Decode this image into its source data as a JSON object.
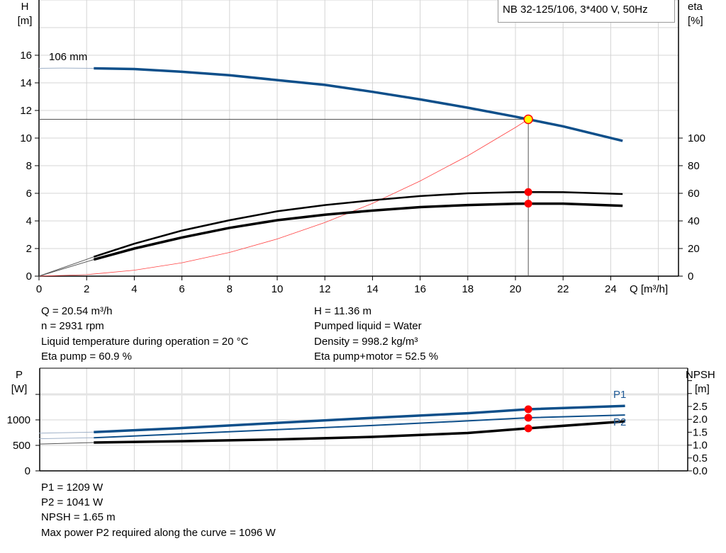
{
  "chart_data": [
    {
      "type": "line",
      "title": "NB 32-125/106, 3*400 V, 50Hz",
      "xlabel": "Q [m³/h]",
      "xlim": [
        0,
        26.8
      ],
      "xticks": [
        0,
        2,
        4,
        6,
        8,
        10,
        12,
        14,
        16,
        18,
        20,
        22,
        24
      ],
      "ylabel": "H\n[m]",
      "ylim": [
        0,
        20
      ],
      "yticks": [
        0,
        2,
        4,
        6,
        8,
        10,
        12,
        14,
        16
      ],
      "y2label": "eta\n[%]",
      "y2lim": [
        0,
        200
      ],
      "y2ticks": [
        0,
        20,
        40,
        60,
        80,
        100
      ],
      "grid": true,
      "curve_label": "106 mm",
      "series": [
        {
          "name": "H",
          "axis": "left",
          "color": "#0e4f8a",
          "x": [
            0,
            1,
            2.3,
            4,
            6,
            8,
            10,
            12,
            14,
            16,
            18,
            20,
            20.54,
            22,
            24.5
          ],
          "y": [
            15.05,
            15.07,
            15.05,
            15.0,
            14.8,
            14.55,
            14.2,
            13.85,
            13.35,
            12.8,
            12.2,
            11.55,
            11.36,
            10.85,
            9.8
          ]
        },
        {
          "name": "Eta pump",
          "axis": "right",
          "color": "#000000",
          "x": [
            0,
            2.3,
            4,
            6,
            8,
            10,
            12,
            14,
            16,
            18,
            20,
            20.54,
            22,
            24.5
          ],
          "y": [
            0,
            14,
            23.5,
            33,
            40.5,
            47,
            51.5,
            55,
            58,
            60,
            60.8,
            60.9,
            60.8,
            59.5
          ]
        },
        {
          "name": "Eta pump+motor",
          "axis": "right",
          "color": "#000000",
          "x": [
            0,
            2.3,
            4,
            6,
            8,
            10,
            12,
            14,
            16,
            18,
            20,
            20.54,
            22,
            24.5
          ],
          "y": [
            0,
            12,
            20,
            28,
            35,
            40.5,
            44.5,
            47.5,
            50,
            51.5,
            52.4,
            52.5,
            52.5,
            51
          ]
        },
        {
          "name": "System curve",
          "axis": "left",
          "color": "#ff0000",
          "x": [
            0,
            2,
            4,
            6,
            8,
            10,
            12,
            14,
            16,
            18,
            20,
            20.54
          ],
          "y": [
            0,
            0.11,
            0.43,
            0.97,
            1.72,
            2.69,
            3.88,
            5.27,
            6.89,
            8.72,
            10.77,
            11.36
          ]
        }
      ],
      "operating_point": {
        "Q": 20.54,
        "H": 11.36,
        "eta_pump": 60.9,
        "eta_total": 52.5
      }
    },
    {
      "type": "line",
      "xlim": [
        0,
        26.8
      ],
      "ylabel": "P\n[W]",
      "ylim": [
        0,
        2000
      ],
      "yticks": [
        0,
        500,
        1000
      ],
      "y2label": "NPSH\n[m]",
      "y2lim": [
        0,
        4
      ],
      "y2ticks": [
        "0.0",
        "0.5",
        "1.0",
        "1.5",
        "2.0",
        "2.5"
      ],
      "grid": true,
      "series": [
        {
          "name": "P1",
          "axis": "left",
          "color": "#0e4f8a",
          "x": [
            0,
            2.3,
            6,
            10,
            14,
            18,
            20.54,
            24.6
          ],
          "y": [
            740,
            760,
            840,
            940,
            1040,
            1130,
            1209,
            1275
          ]
        },
        {
          "name": "P2",
          "axis": "left",
          "color": "#0e4f8a",
          "x": [
            0,
            2.3,
            6,
            10,
            14,
            18,
            20.54,
            24.6
          ],
          "y": [
            630,
            650,
            725,
            810,
            890,
            980,
            1041,
            1096
          ]
        },
        {
          "name": "NPSH",
          "axis": "right",
          "color": "#000000",
          "x": [
            0,
            2.3,
            6,
            10,
            14,
            18,
            20.54,
            24.6
          ],
          "y": [
            1.04,
            1.1,
            1.15,
            1.22,
            1.32,
            1.47,
            1.65,
            1.92
          ]
        }
      ],
      "operating_point": {
        "Q": 20.54,
        "P1": 1209,
        "P2": 1041,
        "NPSH": 1.65
      }
    }
  ],
  "info_top": {
    "left": [
      "Q = 20.54 m³/h",
      "n = 2931 rpm",
      "Liquid temperature during operation = 20 °C",
      "Eta pump = 60.9 %"
    ],
    "right": [
      "H = 11.36 m",
      "Pumped liquid = Water",
      "Density = 998.2 kg/m³",
      "Eta pump+motor = 52.5 %"
    ]
  },
  "info_bottom": [
    "P1 = 1209 W",
    "P2 = 1041 W",
    "NPSH = 1.65 m",
    "Max power P2 required along the curve = 1096 W"
  ]
}
